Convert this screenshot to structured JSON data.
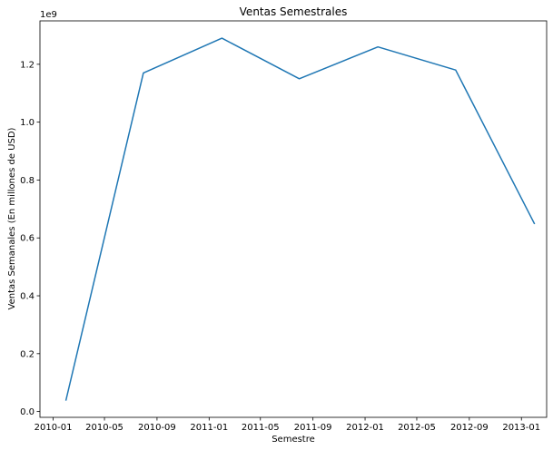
{
  "chart_data": {
    "type": "line",
    "title": "Ventas Semestrales",
    "xlabel": "Semestre",
    "ylabel": "Ventas Semanales (En millones de USD)",
    "y_offset_label": "1e9",
    "x_tick_labels": [
      "2010-01",
      "2010-05",
      "2010-09",
      "2011-01",
      "2011-05",
      "2011-09",
      "2012-01",
      "2012-05",
      "2012-09",
      "2013-01"
    ],
    "x_tick_dates": [
      "2010-01-01",
      "2010-05-01",
      "2010-09-01",
      "2011-01-01",
      "2011-05-01",
      "2011-09-01",
      "2012-01-01",
      "2012-05-01",
      "2012-09-01",
      "2013-01-01"
    ],
    "y_tick_labels": [
      "0.0",
      "0.2",
      "0.4",
      "0.6",
      "0.8",
      "1.0",
      "1.2"
    ],
    "y_tick_values": [
      0.0,
      0.2,
      0.4,
      0.6,
      0.8,
      1.0,
      1.2
    ],
    "xlim": [
      "2009-12-01",
      "2013-03-01"
    ],
    "ylim": [
      -0.02,
      1.35
    ],
    "grid": false,
    "series": [
      {
        "color": "#1f77b4",
        "x": [
          "2010-01-31",
          "2010-07-31",
          "2011-01-31",
          "2011-07-31",
          "2012-01-31",
          "2012-07-31",
          "2013-01-31"
        ],
        "y": [
          0.04,
          1.17,
          1.29,
          1.15,
          1.26,
          1.18,
          0.65
        ]
      }
    ]
  }
}
